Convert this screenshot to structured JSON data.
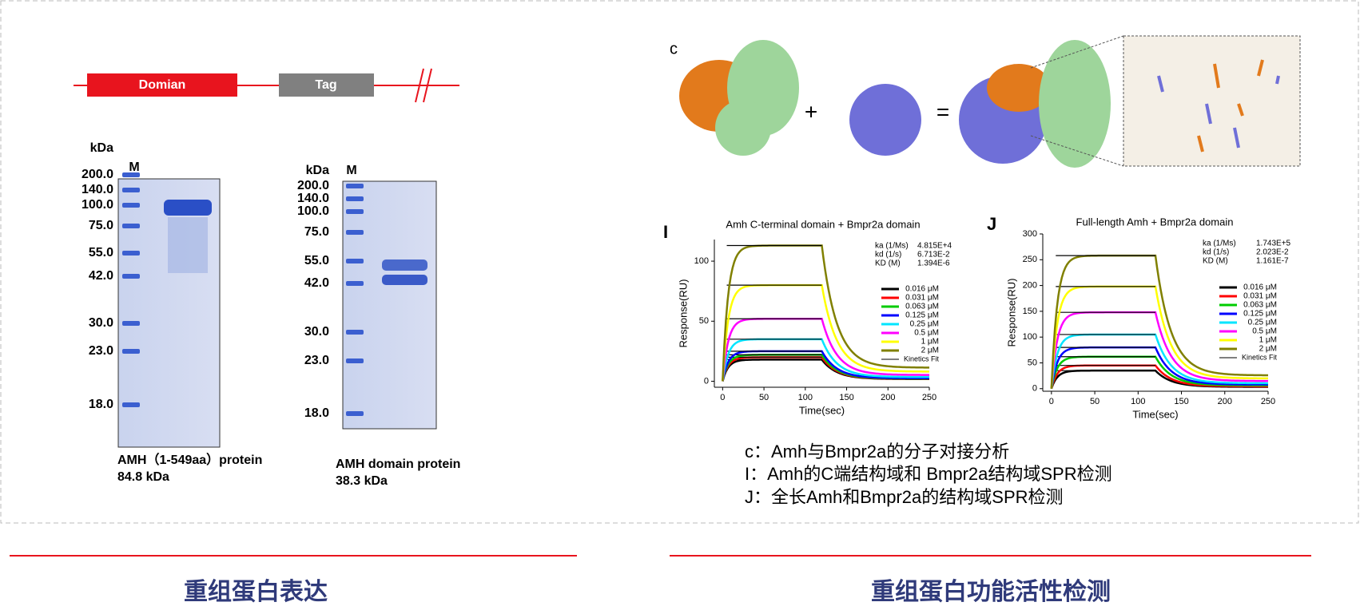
{
  "domain_map": {
    "segments": [
      "Domian",
      "Tag"
    ]
  },
  "gels": [
    {
      "unit": "kDa",
      "lane": "M",
      "markers": [
        "200.0",
        "140.0",
        "100.0",
        "75.0",
        "55.0",
        "42.0",
        "30.0",
        "23.0",
        "18.0"
      ],
      "caption": [
        "AMH（1-549aa）protein",
        "84.8 kDa"
      ]
    },
    {
      "unit": "kDa",
      "lane": "M",
      "markers": [
        "200.0",
        "140.0",
        "100.0",
        "75.0",
        "55.0",
        "42.0",
        "30.0",
        "23.0",
        "18.0"
      ],
      "caption": [
        "AMH domain protein",
        "38.3 kDa"
      ]
    }
  ],
  "docking": {
    "label": "c",
    "plus": "+",
    "equals": "="
  },
  "spr_panels": [
    {
      "label": "I",
      "title": "Amh C-terminal domain + Bmpr2a domain",
      "xlabel": "Time(sec)",
      "ylabel": "Response(RU)",
      "xlim": [
        -10,
        250
      ],
      "xticks": [
        0,
        50,
        100,
        150,
        200,
        250
      ],
      "ylim": [
        -5,
        118
      ],
      "yticks": [
        0,
        50,
        100
      ],
      "kinetics": [
        [
          "ka (1/Ms)",
          "4.815E+4"
        ],
        [
          "kd (1/s)",
          "6.713E-2"
        ],
        [
          "KD (M)",
          "1.394E-6"
        ]
      ],
      "series": [
        {
          "name": "0.016 μM",
          "color": "#000000",
          "plateau": 18
        },
        {
          "name": "0.031 μM",
          "color": "#ff0000",
          "plateau": 20
        },
        {
          "name": "0.063 μM",
          "color": "#00cc00",
          "plateau": 22
        },
        {
          "name": "0.125 μM",
          "color": "#0000ff",
          "plateau": 25
        },
        {
          "name": "0.25 μM",
          "color": "#00e5ff",
          "plateau": 35
        },
        {
          "name": "0.5 μM",
          "color": "#ff00ff",
          "plateau": 52
        },
        {
          "name": "1 μM",
          "color": "#ffff00",
          "plateau": 80
        },
        {
          "name": "2 μM",
          "color": "#808000",
          "plateau": 113
        }
      ],
      "fit_label": "Kinetics Fit"
    },
    {
      "label": "J",
      "title": "Full-length Amh + Bmpr2a domain",
      "xlabel": "Time(sec)",
      "ylabel": "Response(RU)",
      "xlim": [
        -10,
        250
      ],
      "xticks": [
        0,
        50,
        100,
        150,
        200,
        250
      ],
      "ylim": [
        -5,
        300
      ],
      "yticks": [
        0,
        50,
        100,
        150,
        200,
        250,
        300
      ],
      "kinetics": [
        [
          "ka (1/Ms)",
          "1.743E+5"
        ],
        [
          "kd (1/s)",
          "2.023E-2"
        ],
        [
          "KD (M)",
          "1.161E-7"
        ]
      ],
      "series": [
        {
          "name": "0.016 μM",
          "color": "#000000",
          "plateau": 35
        },
        {
          "name": "0.031 μM",
          "color": "#ff0000",
          "plateau": 45
        },
        {
          "name": "0.063 μM",
          "color": "#00cc00",
          "plateau": 62
        },
        {
          "name": "0.125 μM",
          "color": "#0000ff",
          "plateau": 80
        },
        {
          "name": "0.25 μM",
          "color": "#00e5ff",
          "plateau": 105
        },
        {
          "name": "0.5 μM",
          "color": "#ff00ff",
          "plateau": 148
        },
        {
          "name": "1 μM",
          "color": "#ffff00",
          "plateau": 198
        },
        {
          "name": "2 μM",
          "color": "#808000",
          "plateau": 258
        }
      ],
      "fit_label": "Kinetics Fit"
    }
  ],
  "captions": [
    "c：Amh与Bmpr2a的分子对接分析",
    "I：Amh的C端结构域和 Bmpr2a结构域SPR检测",
    "J：全长Amh和Bmpr2a的结构域SPR检测"
  ],
  "sections": [
    "重组蛋白表达",
    "重组蛋白功能活性检测"
  ]
}
